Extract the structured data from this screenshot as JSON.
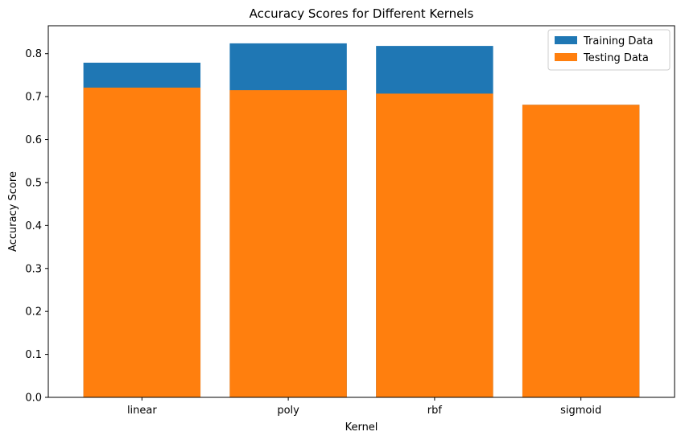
{
  "chart_data": {
    "type": "bar",
    "title": "Accuracy Scores for Different Kernels",
    "xlabel": "Kernel",
    "ylabel": "Accuracy Score",
    "categories": [
      "linear",
      "poly",
      "rbf",
      "sigmoid"
    ],
    "series": [
      {
        "name": "Training Data",
        "values": [
          0.779,
          0.824,
          0.818,
          0.681
        ],
        "color": "#1f77b4"
      },
      {
        "name": "Testing Data",
        "values": [
          0.721,
          0.715,
          0.707,
          0.681
        ],
        "color": "#ff7f0e"
      }
    ],
    "ylim": [
      0,
      0.865
    ],
    "yticks": [
      0.0,
      0.1,
      0.2,
      0.3,
      0.4,
      0.5,
      0.6,
      0.7,
      0.8
    ],
    "ytick_labels": [
      "0.0",
      "0.1",
      "0.2",
      "0.3",
      "0.4",
      "0.5",
      "0.6",
      "0.7",
      "0.8"
    ],
    "grid": false,
    "legend_position": "top-right",
    "overlay": true
  }
}
